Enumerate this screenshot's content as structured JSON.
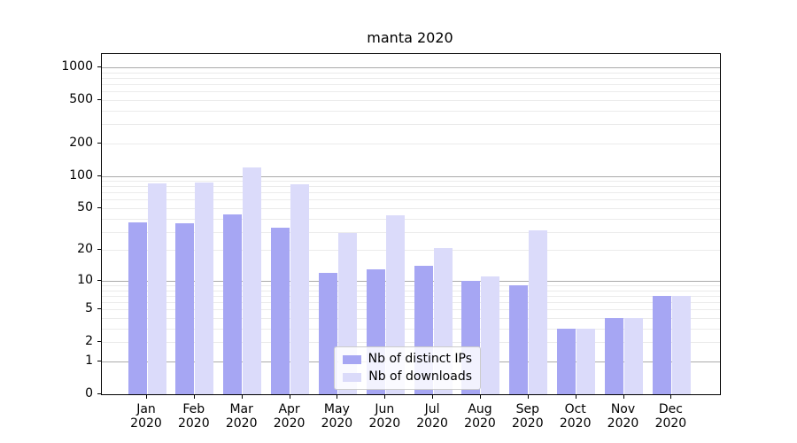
{
  "title": "manta 2020",
  "chart_data": {
    "type": "bar",
    "title": "manta 2020",
    "months": [
      "Jan",
      "Feb",
      "Mar",
      "Apr",
      "May",
      "Jun",
      "Jul",
      "Aug",
      "Sep",
      "Oct",
      "Nov",
      "Dec"
    ],
    "year": "2020",
    "series": [
      {
        "name": "Nb of distinct IPs",
        "color": "#a6a6f3",
        "values": [
          37,
          36,
          44,
          33,
          12,
          13,
          14,
          10,
          9,
          3,
          4,
          7
        ]
      },
      {
        "name": "Nb of downloads",
        "color": "#dbdbfa",
        "values": [
          85,
          87,
          120,
          84,
          29,
          43,
          21,
          11,
          31,
          3,
          4,
          7
        ]
      }
    ],
    "yticks": [
      0,
      1,
      2,
      5,
      10,
      20,
      50,
      100,
      200,
      500,
      1000
    ],
    "yscale": "log10(1+y)",
    "ylim": [
      0,
      1326
    ],
    "grid": {
      "major_at": [
        1,
        10,
        100,
        1000
      ],
      "minor_at": "2-9 per decade",
      "enabled": true
    },
    "legend_position": "inside lower-center",
    "colors": {
      "major_grid": "#ababab",
      "minor_grid": "#ebebeb",
      "spine": "#000000"
    }
  }
}
